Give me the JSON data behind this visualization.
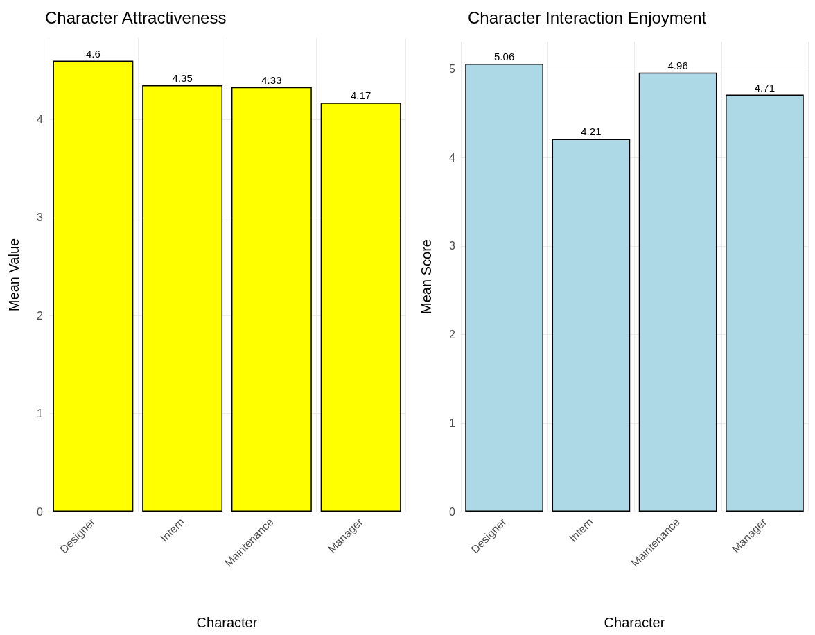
{
  "chart_data": [
    {
      "type": "bar",
      "title": "Character Attractiveness",
      "xlabel": "Character",
      "ylabel": "Mean Value",
      "categories": [
        "Designer",
        "Intern",
        "Maintenance",
        "Manager"
      ],
      "values": [
        4.6,
        4.35,
        4.33,
        4.17
      ],
      "color": "#ffff00",
      "ylim": [
        0,
        4.83
      ],
      "yticks": [
        0,
        1,
        2,
        3,
        4
      ],
      "grid": true,
      "data_labels": true
    },
    {
      "type": "bar",
      "title": "Character Interaction Enjoyment",
      "xlabel": "Character",
      "ylabel": "Mean Score",
      "categories": [
        "Designer",
        "Intern",
        "Maintenance",
        "Manager"
      ],
      "values": [
        5.06,
        4.21,
        4.96,
        4.71
      ],
      "color": "#add8e6",
      "ylim": [
        0,
        5.31
      ],
      "yticks": [
        0,
        1,
        2,
        3,
        4,
        5
      ],
      "grid": true,
      "data_labels": true
    }
  ]
}
